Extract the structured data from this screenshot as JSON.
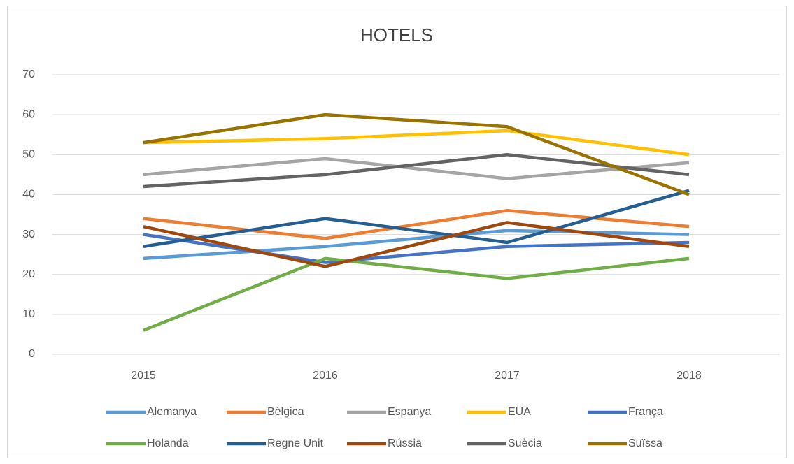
{
  "chart_data": {
    "type": "line",
    "title": "HOTELS",
    "categories": [
      "2015",
      "2016",
      "2017",
      "2018"
    ],
    "ylim": [
      0,
      70
    ],
    "yticks": [
      0,
      10,
      20,
      30,
      40,
      50,
      60,
      70
    ],
    "grid": true,
    "legend": "bottom",
    "series": [
      {
        "name": "Alemanya",
        "color": "#5b9bd5",
        "values": [
          24,
          27,
          31,
          30
        ]
      },
      {
        "name": "Bèlgica",
        "color": "#ed7d31",
        "values": [
          34,
          29,
          36,
          32
        ]
      },
      {
        "name": "Espanya",
        "color": "#a5a5a5",
        "values": [
          45,
          49,
          44,
          48
        ]
      },
      {
        "name": "EUA",
        "color": "#ffc000",
        "values": [
          53,
          54,
          56,
          50
        ]
      },
      {
        "name": "França",
        "color": "#4472c4",
        "values": [
          30,
          23,
          27,
          28
        ]
      },
      {
        "name": "Holanda",
        "color": "#70ad47",
        "values": [
          6,
          24,
          19,
          24
        ]
      },
      {
        "name": "Regne Unit",
        "color": "#255e91",
        "values": [
          27,
          34,
          28,
          41
        ]
      },
      {
        "name": "Rússia",
        "color": "#9e480e",
        "values": [
          32,
          22,
          33,
          27
        ]
      },
      {
        "name": "Suècia",
        "color": "#636363",
        "values": [
          42,
          45,
          50,
          45
        ]
      },
      {
        "name": "Suïssa",
        "color": "#997300",
        "values": [
          53,
          60,
          57,
          40
        ]
      }
    ]
  }
}
